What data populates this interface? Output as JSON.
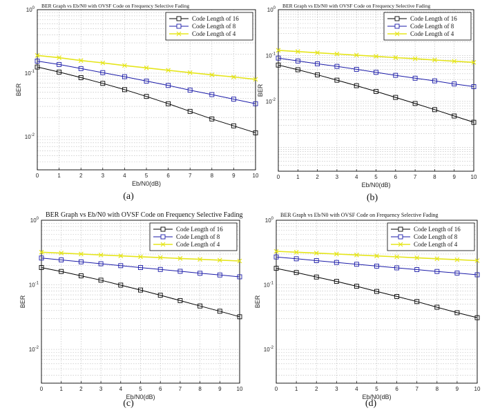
{
  "chart_data": [
    {
      "type": "line",
      "panel": "a",
      "caption": "(a)",
      "title": "BER Graph vs Eb/N0 with OVSF Code on Frequency Selective Fading",
      "xlabel": "Eb/N0(dB)",
      "ylabel": "BER",
      "yscale": "log",
      "xlim": [
        0,
        10
      ],
      "ylim": [
        0.003,
        1
      ],
      "x_ticks": [
        0,
        1,
        2,
        3,
        4,
        5,
        6,
        7,
        8,
        9,
        10
      ],
      "y_tick_labels": [
        "10^0",
        "10^-1",
        "10^-2"
      ],
      "grid": true,
      "legend": "top-right",
      "x": [
        0,
        1,
        2,
        3,
        4,
        5,
        6,
        7,
        8,
        9,
        10
      ],
      "series": [
        {
          "name": "Code Length of 16",
          "color": "#000000",
          "marker": "square",
          "values": [
            0.125,
            0.104,
            0.085,
            0.069,
            0.055,
            0.043,
            0.033,
            0.025,
            0.019,
            0.0148,
            0.0115
          ]
        },
        {
          "name": "Code Length of 8",
          "color": "#1a1aa8",
          "marker": "square",
          "values": [
            0.155,
            0.137,
            0.118,
            0.102,
            0.088,
            0.075,
            0.064,
            0.054,
            0.046,
            0.039,
            0.033
          ]
        },
        {
          "name": "Code Length of 4",
          "color": "#e5e51a",
          "marker": "x",
          "values": [
            0.19,
            0.175,
            0.158,
            0.145,
            0.132,
            0.121,
            0.111,
            0.102,
            0.094,
            0.087,
            0.08
          ]
        }
      ]
    },
    {
      "type": "line",
      "panel": "b",
      "caption": "(b)",
      "title": "BER Graph vs Eb/N0 with OVSF Code on Frequency Selective Fading",
      "xlabel": "Eb/N0(dB)",
      "ylabel": "BER",
      "yscale": "log",
      "xlim": [
        0,
        10
      ],
      "ylim": [
        0.0003,
        1
      ],
      "x_ticks": [
        0,
        1,
        2,
        3,
        4,
        5,
        6,
        7,
        8,
        9,
        10
      ],
      "y_tick_labels": [
        "10^0",
        "10^-1",
        "10^-2"
      ],
      "grid": true,
      "legend": "top-right",
      "x": [
        0,
        1,
        2,
        3,
        4,
        5,
        6,
        7,
        8,
        9,
        10
      ],
      "series": [
        {
          "name": "Code Length of 16",
          "color": "#000000",
          "marker": "square",
          "values": [
            0.062,
            0.049,
            0.038,
            0.029,
            0.022,
            0.0165,
            0.0122,
            0.009,
            0.0066,
            0.0048,
            0.0035
          ]
        },
        {
          "name": "Code Length of 8",
          "color": "#1a1aa8",
          "marker": "square",
          "values": [
            0.088,
            0.076,
            0.066,
            0.058,
            0.05,
            0.043,
            0.037,
            0.032,
            0.028,
            0.024,
            0.021
          ]
        },
        {
          "name": "Code Length of 4",
          "color": "#e5e51a",
          "marker": "x",
          "values": [
            0.13,
            0.122,
            0.115,
            0.108,
            0.102,
            0.096,
            0.09,
            0.085,
            0.08,
            0.075,
            0.071
          ]
        }
      ]
    },
    {
      "type": "line",
      "panel": "c",
      "caption": "(c)",
      "title": "BER Graph vs Eb/N0 with OVSF Code on Frequency Selective Fading",
      "xlabel": "Eb/N0(dB)",
      "ylabel": "BER",
      "yscale": "log",
      "xlim": [
        0,
        10
      ],
      "ylim": [
        0.003,
        1
      ],
      "x_ticks": [
        0,
        1,
        2,
        3,
        4,
        5,
        6,
        7,
        8,
        9,
        10
      ],
      "y_tick_labels": [
        "10^0",
        "10^-1",
        "10^-2"
      ],
      "grid": true,
      "legend": "top-right",
      "x": [
        0,
        1,
        2,
        3,
        4,
        5,
        6,
        7,
        8,
        9,
        10
      ],
      "series": [
        {
          "name": "Code Length of 16",
          "color": "#000000",
          "marker": "square",
          "values": [
            0.185,
            0.161,
            0.138,
            0.118,
            0.099,
            0.083,
            0.069,
            0.057,
            0.047,
            0.039,
            0.032
          ]
        },
        {
          "name": "Code Length of 8",
          "color": "#1a1aa8",
          "marker": "square",
          "values": [
            0.26,
            0.243,
            0.227,
            0.212,
            0.198,
            0.185,
            0.173,
            0.162,
            0.151,
            0.142,
            0.133
          ]
        },
        {
          "name": "Code Length of 4",
          "color": "#e5e51a",
          "marker": "x",
          "values": [
            0.32,
            0.31,
            0.3,
            0.29,
            0.281,
            0.272,
            0.264,
            0.256,
            0.248,
            0.241,
            0.234
          ]
        }
      ]
    },
    {
      "type": "line",
      "panel": "d",
      "caption": "(d)",
      "title": "BER Graph vs Eb/N0 with OVSF Code on Frequency Selective Fading",
      "xlabel": "Eb/N0(dB)",
      "ylabel": "BER",
      "yscale": "log",
      "xlim": [
        0,
        10
      ],
      "ylim": [
        0.003,
        1
      ],
      "x_ticks": [
        0,
        1,
        2,
        3,
        4,
        5,
        6,
        7,
        8,
        9,
        10
      ],
      "y_tick_labels": [
        "10^0",
        "10^-1",
        "10^-2"
      ],
      "grid": true,
      "legend": "top-right",
      "x": [
        0,
        1,
        2,
        3,
        4,
        5,
        6,
        7,
        8,
        9,
        10
      ],
      "series": [
        {
          "name": "Code Length of 16",
          "color": "#000000",
          "marker": "square",
          "values": [
            0.18,
            0.155,
            0.132,
            0.113,
            0.095,
            0.079,
            0.066,
            0.055,
            0.045,
            0.037,
            0.031
          ]
        },
        {
          "name": "Code Length of 8",
          "color": "#1a1aa8",
          "marker": "square",
          "values": [
            0.27,
            0.253,
            0.237,
            0.222,
            0.208,
            0.195,
            0.183,
            0.172,
            0.161,
            0.152,
            0.143
          ]
        },
        {
          "name": "Code Length of 4",
          "color": "#e5e51a",
          "marker": "x",
          "values": [
            0.33,
            0.32,
            0.31,
            0.3,
            0.29,
            0.28,
            0.271,
            0.262,
            0.253,
            0.245,
            0.237
          ]
        }
      ]
    }
  ]
}
